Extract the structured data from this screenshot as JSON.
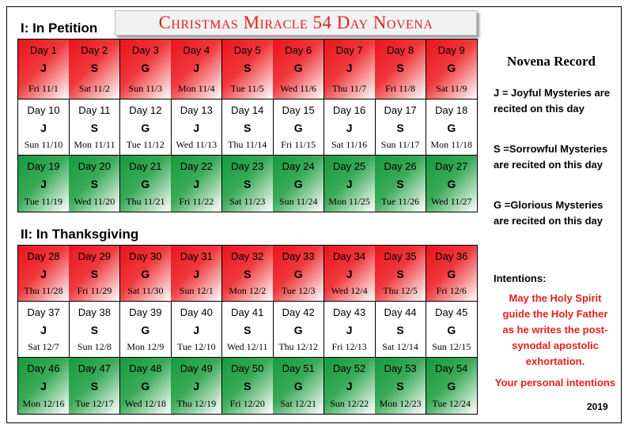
{
  "header": {
    "title": "Christmas Miracle 54 Day Novena"
  },
  "sections": [
    {
      "title": "I: In Petition",
      "rows": [
        [
          {
            "day": "Day 1",
            "letter": "J",
            "date": "Fri 11/1"
          },
          {
            "day": "Day 2",
            "letter": "S",
            "date": "Sat 11/2"
          },
          {
            "day": "Day 3",
            "letter": "G",
            "date": "Sun 11/3"
          },
          {
            "day": "Day 4",
            "letter": "J",
            "date": "Mon 11/4"
          },
          {
            "day": "Day 5",
            "letter": "S",
            "date": "Tue 11/5"
          },
          {
            "day": "Day 6",
            "letter": "G",
            "date": "Wed 11/6"
          },
          {
            "day": "Day 7",
            "letter": "J",
            "date": "Thu 11/7"
          },
          {
            "day": "Day 8",
            "letter": "S",
            "date": "Fri 11/8"
          },
          {
            "day": "Day 9",
            "letter": "G",
            "date": "Sat 11/9"
          }
        ],
        [
          {
            "day": "Day 10",
            "letter": "J",
            "date": "Sun 11/10"
          },
          {
            "day": "Day 11",
            "letter": "S",
            "date": "Mon 11/11"
          },
          {
            "day": "Day 12",
            "letter": "G",
            "date": "Tue 11/12"
          },
          {
            "day": "Day 13",
            "letter": "J",
            "date": "Wed 11/13"
          },
          {
            "day": "Day 14",
            "letter": "S",
            "date": "Thu 11/14"
          },
          {
            "day": "Day 15",
            "letter": "G",
            "date": "Fri 11/15"
          },
          {
            "day": "Day 16",
            "letter": "J",
            "date": "Sat 11/16"
          },
          {
            "day": "Day 17",
            "letter": "S",
            "date": "Sun 11/17"
          },
          {
            "day": "Day 18",
            "letter": "G",
            "date": "Mon 11/18"
          }
        ],
        [
          {
            "day": "Day 19",
            "letter": "J",
            "date": "Tue 11/19"
          },
          {
            "day": "Day 20",
            "letter": "S",
            "date": "Wed 11/20"
          },
          {
            "day": "Day 21",
            "letter": "G",
            "date": "Thu 11/21"
          },
          {
            "day": "Day 22",
            "letter": "J",
            "date": "Fri 11/22"
          },
          {
            "day": "Day 23",
            "letter": "S",
            "date": "Sat 11/23"
          },
          {
            "day": "Day 24",
            "letter": "G",
            "date": "Sun 11/24"
          },
          {
            "day": "Day 25",
            "letter": "J",
            "date": "Mon 11/25"
          },
          {
            "day": "Day 26",
            "letter": "S",
            "date": "Tue 11/26"
          },
          {
            "day": "Day 27",
            "letter": "G",
            "date": "Wed 11/27"
          }
        ]
      ]
    },
    {
      "title": "II: In Thanksgiving",
      "rows": [
        [
          {
            "day": "Day 28",
            "letter": "J",
            "date": "Thu 11/28"
          },
          {
            "day": "Day 29",
            "letter": "S",
            "date": "Fri 11/29"
          },
          {
            "day": "Day 30",
            "letter": "G",
            "date": "Sat 11/30"
          },
          {
            "day": "Day 31",
            "letter": "J",
            "date": "Sun 12/1"
          },
          {
            "day": "Day 32",
            "letter": "S",
            "date": "Mon 12/2"
          },
          {
            "day": "Day 33",
            "letter": "G",
            "date": "Tue 12/3"
          },
          {
            "day": "Day 34",
            "letter": "J",
            "date": "Wed 12/4"
          },
          {
            "day": "Day 35",
            "letter": "S",
            "date": "Thu 12/5"
          },
          {
            "day": "Day 36",
            "letter": "G",
            "date": "Fri 12/6"
          }
        ],
        [
          {
            "day": "Day 37",
            "letter": "J",
            "date": "Sat 12/7"
          },
          {
            "day": "Day 38",
            "letter": "S",
            "date": "Sun 12/8"
          },
          {
            "day": "Day 39",
            "letter": "G",
            "date": "Mon 12/9"
          },
          {
            "day": "Day 40",
            "letter": "J",
            "date": "Tue 12/10"
          },
          {
            "day": "Day 41",
            "letter": "S",
            "date": "Wed 12/11"
          },
          {
            "day": "Day 42",
            "letter": "G",
            "date": "Thu 12/12"
          },
          {
            "day": "Day 43",
            "letter": "J",
            "date": "Fri 12/13"
          },
          {
            "day": "Day 44",
            "letter": "S",
            "date": "Sat 12/14"
          },
          {
            "day": "Day 45",
            "letter": "G",
            "date": "Sun 12/15"
          }
        ],
        [
          {
            "day": "Day 46",
            "letter": "J",
            "date": "Mon 12/16"
          },
          {
            "day": "Day 47",
            "letter": "S",
            "date": "Tue 12/17"
          },
          {
            "day": "Day 48",
            "letter": "G",
            "date": "Wed 12/18"
          },
          {
            "day": "Day 49",
            "letter": "J",
            "date": "Thu 12/19"
          },
          {
            "day": "Day 50",
            "letter": "S",
            "date": "Fri 12/20"
          },
          {
            "day": "Day 51",
            "letter": "G",
            "date": "Sat 12/21"
          },
          {
            "day": "Day 52",
            "letter": "J",
            "date": "Sun 12/22"
          },
          {
            "day": "Day 53",
            "letter": "S",
            "date": "Mon 12/23"
          },
          {
            "day": "Day 54",
            "letter": "G",
            "date": "Tue 12/24"
          }
        ]
      ]
    }
  ],
  "sidebar": {
    "title": "Novena Record",
    "legend": [
      [
        "J = Joyful Mysteries are",
        "recited on this day"
      ],
      [
        "S =Sorrowful Mysteries",
        "are recited on this day"
      ],
      [
        "G =Glorious Mysteries",
        "are recited on this day"
      ]
    ],
    "intentions_label": "Intentions:",
    "intentions": [
      "May the Holy Spirit",
      "guide the Holy Father",
      "as he writes the post-",
      "synodal apostolic",
      "exhortation."
    ],
    "personal": "Your personal intentions",
    "year": "2019"
  }
}
